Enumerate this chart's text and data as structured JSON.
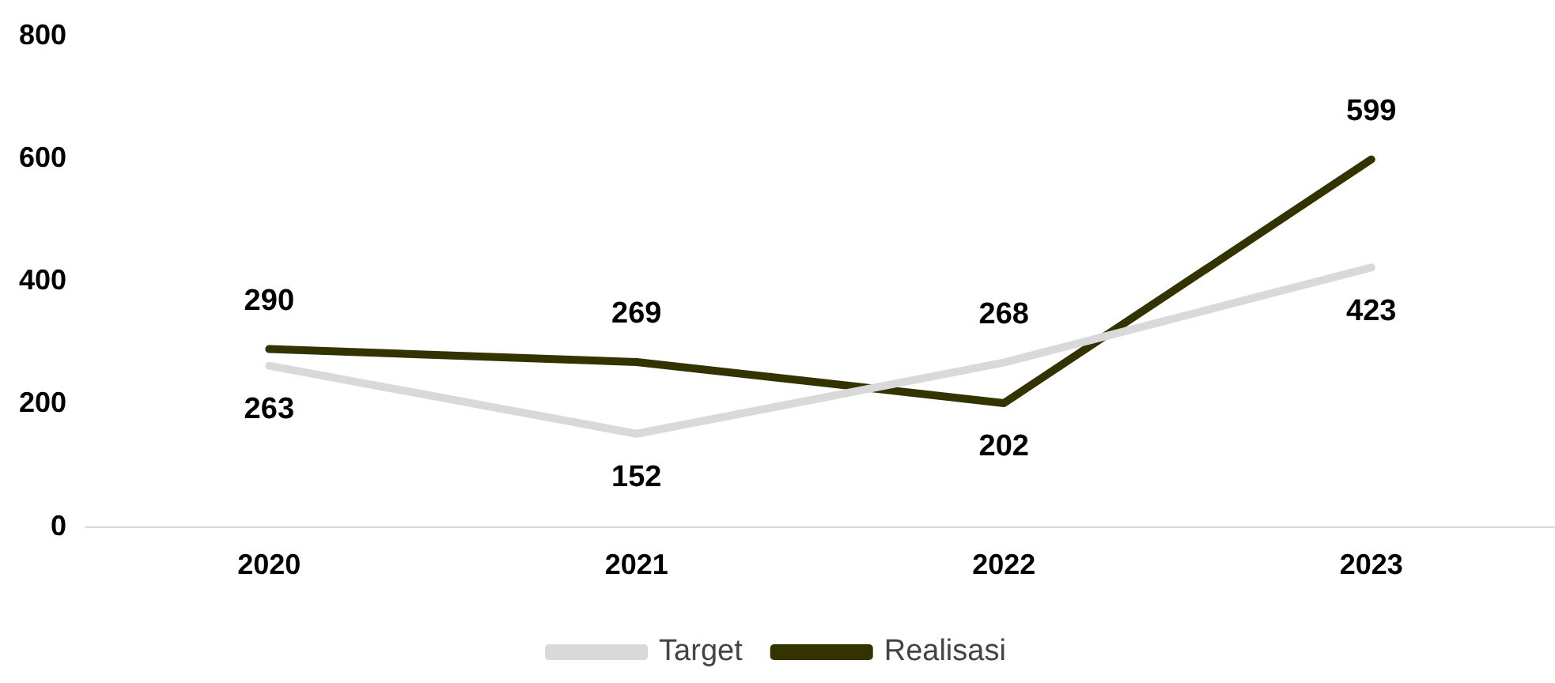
{
  "chart_data": {
    "type": "line",
    "categories": [
      "2020",
      "2021",
      "2022",
      "2023"
    ],
    "series": [
      {
        "name": "Target",
        "color": "#d9d9d9",
        "values": [
          263,
          152,
          268,
          423
        ]
      },
      {
        "name": "Realisasi",
        "color": "#333300",
        "values": [
          290,
          269,
          202,
          599
        ]
      }
    ],
    "ylim": [
      0,
      800
    ],
    "yticks": [
      0,
      200,
      400,
      600,
      800
    ],
    "grid": false,
    "legend": "bottom",
    "marker": "none",
    "line_style": "solid",
    "data_labels": true
  }
}
